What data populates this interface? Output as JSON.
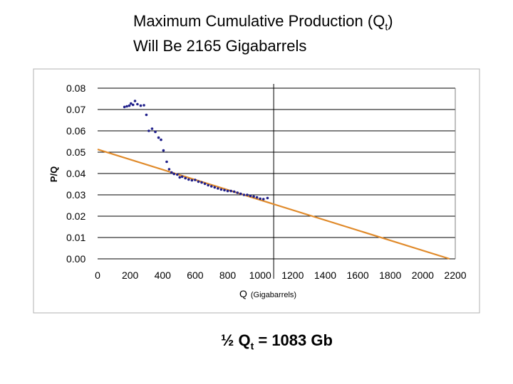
{
  "title": {
    "line1_prefix": "Maximum Cumulative Production (Q",
    "line1_sub": "t",
    "line1_suffix": ")",
    "line2": "Will Be 2165 Gigabarrels"
  },
  "caption": {
    "prefix": "½ Q",
    "sub": "t",
    "suffix": " = 1083 Gb"
  },
  "colors": {
    "points": "#1f1f8a",
    "trend": "#e08a2a",
    "grid": "#000000",
    "frame": "#b0b0b0"
  },
  "chart_data": {
    "type": "scatter",
    "title": "",
    "xlabel_main": "Q",
    "xlabel_unit": "(Gigabarrels)",
    "ylabel": "P/Q",
    "xlim": [
      0,
      2200
    ],
    "ylim": [
      0,
      0.08
    ],
    "x_ticks": [
      "0",
      "200",
      "400",
      "600",
      "800",
      "1000",
      "1200",
      "1400",
      "1600",
      "1800",
      "2000",
      "2200"
    ],
    "y_ticks": [
      "0.00",
      "0.01",
      "0.02",
      "0.03",
      "0.04",
      "0.05",
      "0.06",
      "0.07",
      "0.08"
    ],
    "grid": "horizontal",
    "marker_line_x": 1083,
    "trend_line": {
      "x": [
        0,
        2165
      ],
      "y": [
        0.0513,
        0
      ]
    },
    "points": [
      {
        "x": 165,
        "y": 0.0712
      },
      {
        "x": 180,
        "y": 0.0715
      },
      {
        "x": 195,
        "y": 0.0718
      },
      {
        "x": 205,
        "y": 0.0728
      },
      {
        "x": 218,
        "y": 0.0722
      },
      {
        "x": 230,
        "y": 0.074
      },
      {
        "x": 245,
        "y": 0.0725
      },
      {
        "x": 265,
        "y": 0.0718
      },
      {
        "x": 285,
        "y": 0.072
      },
      {
        "x": 300,
        "y": 0.0675
      },
      {
        "x": 315,
        "y": 0.06
      },
      {
        "x": 335,
        "y": 0.061
      },
      {
        "x": 355,
        "y": 0.0595
      },
      {
        "x": 375,
        "y": 0.0568
      },
      {
        "x": 390,
        "y": 0.0558
      },
      {
        "x": 405,
        "y": 0.0508
      },
      {
        "x": 425,
        "y": 0.0455
      },
      {
        "x": 440,
        "y": 0.042
      },
      {
        "x": 455,
        "y": 0.0405
      },
      {
        "x": 470,
        "y": 0.0398
      },
      {
        "x": 490,
        "y": 0.0395
      },
      {
        "x": 505,
        "y": 0.0382
      },
      {
        "x": 520,
        "y": 0.0385
      },
      {
        "x": 540,
        "y": 0.0378
      },
      {
        "x": 560,
        "y": 0.0372
      },
      {
        "x": 580,
        "y": 0.0368
      },
      {
        "x": 600,
        "y": 0.037
      },
      {
        "x": 620,
        "y": 0.0362
      },
      {
        "x": 640,
        "y": 0.0358
      },
      {
        "x": 660,
        "y": 0.0352
      },
      {
        "x": 680,
        "y": 0.0345
      },
      {
        "x": 700,
        "y": 0.034
      },
      {
        "x": 720,
        "y": 0.0335
      },
      {
        "x": 740,
        "y": 0.033
      },
      {
        "x": 760,
        "y": 0.0325
      },
      {
        "x": 780,
        "y": 0.0322
      },
      {
        "x": 800,
        "y": 0.0318
      },
      {
        "x": 820,
        "y": 0.0318
      },
      {
        "x": 840,
        "y": 0.0315
      },
      {
        "x": 860,
        "y": 0.031
      },
      {
        "x": 880,
        "y": 0.0305
      },
      {
        "x": 900,
        "y": 0.03
      },
      {
        "x": 920,
        "y": 0.03
      },
      {
        "x": 940,
        "y": 0.0295
      },
      {
        "x": 960,
        "y": 0.0292
      },
      {
        "x": 980,
        "y": 0.0288
      },
      {
        "x": 1000,
        "y": 0.0282
      },
      {
        "x": 1020,
        "y": 0.028
      },
      {
        "x": 1045,
        "y": 0.0285
      }
    ]
  }
}
